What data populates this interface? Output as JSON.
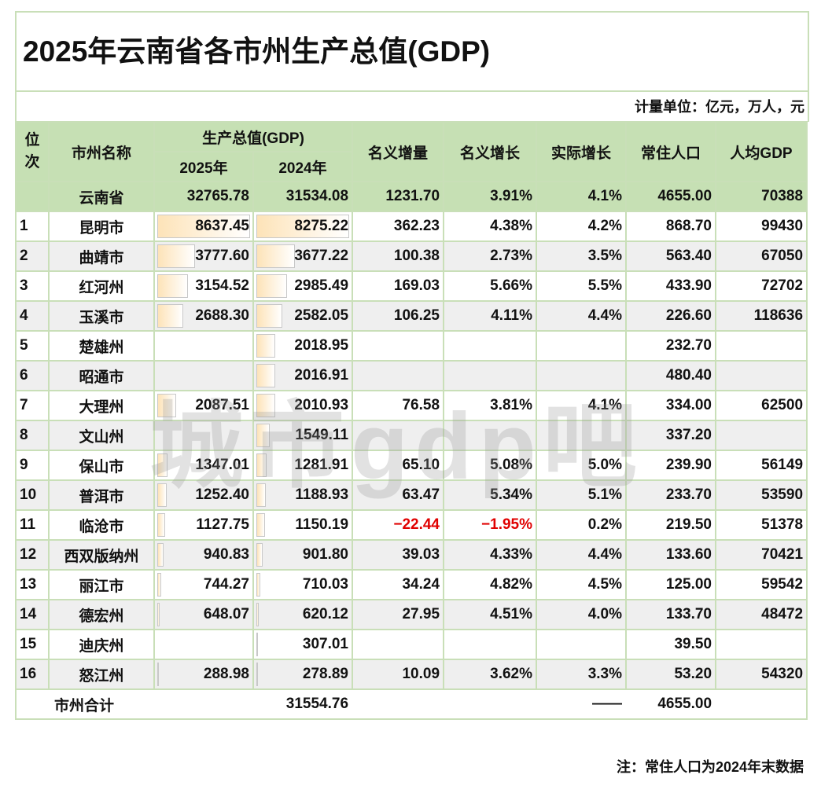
{
  "title": "2025年云南省各市州生产总值(GDP)",
  "unit": "计量单位：亿元，万人，元",
  "headers": {
    "rank": "位次",
    "name": "市州名称",
    "gdp": "生产总值(GDP)",
    "y2025": "2025年",
    "y2024": "2024年",
    "nominal_increase": "名义增量",
    "nominal_growth": "名义增长",
    "real_growth": "实际增长",
    "population": "常住人口",
    "per_capita": "人均GDP"
  },
  "province": {
    "name": "云南省",
    "g2025": "32765.78",
    "g2024": "31534.08",
    "inc": "1231.70",
    "ng": "3.91%",
    "rg": "4.1%",
    "pop": "4655.00",
    "pc": "70388"
  },
  "rows": [
    {
      "rank": "1",
      "name": "昆明市",
      "g2025": "8637.45",
      "g2024": "8275.22",
      "inc": "362.23",
      "ng": "4.38%",
      "rg": "4.2%",
      "pop": "868.70",
      "pc": "99430"
    },
    {
      "rank": "2",
      "name": "曲靖市",
      "g2025": "3777.60",
      "g2024": "3677.22",
      "inc": "100.38",
      "ng": "2.73%",
      "rg": "3.5%",
      "pop": "563.40",
      "pc": "67050"
    },
    {
      "rank": "3",
      "name": "红河州",
      "g2025": "3154.52",
      "g2024": "2985.49",
      "inc": "169.03",
      "ng": "5.66%",
      "rg": "5.5%",
      "pop": "433.90",
      "pc": "72702"
    },
    {
      "rank": "4",
      "name": "玉溪市",
      "g2025": "2688.30",
      "g2024": "2582.05",
      "inc": "106.25",
      "ng": "4.11%",
      "rg": "4.4%",
      "pop": "226.60",
      "pc": "118636"
    },
    {
      "rank": "5",
      "name": "楚雄州",
      "g2025": "",
      "g2024": "2018.95",
      "inc": "",
      "ng": "",
      "rg": "",
      "pop": "232.70",
      "pc": ""
    },
    {
      "rank": "6",
      "name": "昭通市",
      "g2025": "",
      "g2024": "2016.91",
      "inc": "",
      "ng": "",
      "rg": "",
      "pop": "480.40",
      "pc": ""
    },
    {
      "rank": "7",
      "name": "大理州",
      "g2025": "2087.51",
      "g2024": "2010.93",
      "inc": "76.58",
      "ng": "3.81%",
      "rg": "4.1%",
      "pop": "334.00",
      "pc": "62500"
    },
    {
      "rank": "8",
      "name": "文山州",
      "g2025": "",
      "g2024": "1549.11",
      "inc": "",
      "ng": "",
      "rg": "",
      "pop": "337.20",
      "pc": ""
    },
    {
      "rank": "9",
      "name": "保山市",
      "g2025": "1347.01",
      "g2024": "1281.91",
      "inc": "65.10",
      "ng": "5.08%",
      "rg": "5.0%",
      "pop": "239.90",
      "pc": "56149"
    },
    {
      "rank": "10",
      "name": "普洱市",
      "g2025": "1252.40",
      "g2024": "1188.93",
      "inc": "63.47",
      "ng": "5.34%",
      "rg": "5.1%",
      "pop": "233.70",
      "pc": "53590"
    },
    {
      "rank": "11",
      "name": "临沧市",
      "g2025": "1127.75",
      "g2024": "1150.19",
      "inc": "−22.44",
      "ng": "−1.95%",
      "rg": "0.2%",
      "pop": "219.50",
      "pc": "51378",
      "negative": true
    },
    {
      "rank": "12",
      "name": "西双版纳州",
      "g2025": "940.83",
      "g2024": "901.80",
      "inc": "39.03",
      "ng": "4.33%",
      "rg": "4.4%",
      "pop": "133.60",
      "pc": "70421"
    },
    {
      "rank": "13",
      "name": "丽江市",
      "g2025": "744.27",
      "g2024": "710.03",
      "inc": "34.24",
      "ng": "4.82%",
      "rg": "4.5%",
      "pop": "125.00",
      "pc": "59542"
    },
    {
      "rank": "14",
      "name": "德宏州",
      "g2025": "648.07",
      "g2024": "620.12",
      "inc": "27.95",
      "ng": "4.51%",
      "rg": "4.0%",
      "pop": "133.70",
      "pc": "48472"
    },
    {
      "rank": "15",
      "name": "迪庆州",
      "g2025": "",
      "g2024": "307.01",
      "inc": "",
      "ng": "",
      "rg": "",
      "pop": "39.50",
      "pc": ""
    },
    {
      "rank": "16",
      "name": "怒江州",
      "g2025": "288.98",
      "g2024": "278.89",
      "inc": "10.09",
      "ng": "3.62%",
      "rg": "3.3%",
      "pop": "53.20",
      "pc": "54320"
    }
  ],
  "summary": {
    "label": "市州合计",
    "g2024": "31554.76",
    "rg": "——",
    "pop": "4655.00"
  },
  "note": "注：常住人口为2024年末数据",
  "watermark": "城市gdp吧",
  "colors": {
    "header_bg": "#c6e0b4",
    "border": "#c9dfb8",
    "alt_row": "#efefef",
    "negative": "#e00000",
    "bar": "#fde3b8"
  }
}
